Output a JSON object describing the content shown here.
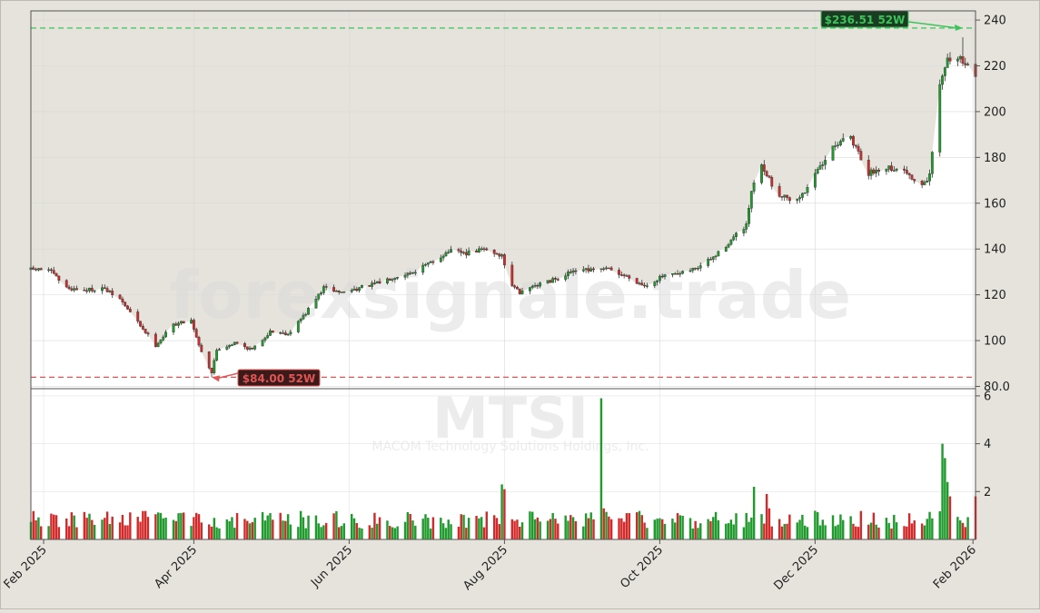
{
  "watermark": {
    "main": "forexsignale.trade",
    "ticker": "MTSI",
    "company": "MACOM Technology Solutions Holdings, Inc."
  },
  "colors": {
    "up": "#1f9a2c",
    "down": "#d22a2a",
    "high_line": "#3cc35a",
    "low_line": "#e05555",
    "panel_bg": "#ffffff",
    "outer_bg": "#e6e3dc",
    "shade": "#e6e3dc"
  },
  "chart_data": {
    "type": "candlestick",
    "ticker": "MTSI",
    "x_range": [
      "2025-01-27",
      "2026-02-02"
    ],
    "x_tick_labels": [
      "Feb 2025",
      "Apr 2025",
      "Jun 2025",
      "Aug 2025",
      "Oct 2025",
      "Dec 2025",
      "Feb 2026"
    ],
    "x_tick_dates": [
      "2025-02-01",
      "2025-04-01",
      "2025-06-01",
      "2025-08-01",
      "2025-10-01",
      "2025-12-01",
      "2026-02-01"
    ],
    "price_axis": {
      "range": [
        79,
        244
      ],
      "ticks": [
        80,
        100,
        120,
        140,
        160,
        180,
        200,
        220,
        240
      ],
      "tick_labels": [
        "80.0",
        "100",
        "120",
        "140",
        "160",
        "180",
        "200",
        "220",
        "240"
      ]
    },
    "volume_axis": {
      "range": [
        0,
        6.3
      ],
      "ticks": [
        2,
        4,
        6
      ],
      "tick_labels": [
        "2",
        "4",
        "6"
      ]
    },
    "high_52w": {
      "value": 236.51,
      "label": "$236.51 52W"
    },
    "low_52w": {
      "value": 84.0,
      "label": "$84.00 52W"
    },
    "last_close": 216,
    "close_anchors": [
      [
        "2025-01-27",
        131
      ],
      [
        "2025-02-03",
        131
      ],
      [
        "2025-02-10",
        123
      ],
      [
        "2025-02-17",
        122
      ],
      [
        "2025-02-24",
        123
      ],
      [
        "2025-03-03",
        118
      ],
      [
        "2025-03-10",
        108
      ],
      [
        "2025-03-17",
        98
      ],
      [
        "2025-03-24",
        107
      ],
      [
        "2025-03-31",
        109
      ],
      [
        "2025-04-03",
        98
      ],
      [
        "2025-04-08",
        86
      ],
      [
        "2025-04-10",
        96
      ],
      [
        "2025-04-17",
        99
      ],
      [
        "2025-04-24",
        96
      ],
      [
        "2025-05-01",
        104
      ],
      [
        "2025-05-08",
        103
      ],
      [
        "2025-05-15",
        112
      ],
      [
        "2025-05-22",
        123
      ],
      [
        "2025-05-29",
        121
      ],
      [
        "2025-06-05",
        123
      ],
      [
        "2025-06-12",
        125
      ],
      [
        "2025-06-19",
        128
      ],
      [
        "2025-06-26",
        130
      ],
      [
        "2025-07-03",
        134
      ],
      [
        "2025-07-10",
        139
      ],
      [
        "2025-07-17",
        138
      ],
      [
        "2025-07-24",
        140
      ],
      [
        "2025-07-31",
        137
      ],
      [
        "2025-08-04",
        124
      ],
      [
        "2025-08-07",
        121
      ],
      [
        "2025-08-14",
        124
      ],
      [
        "2025-08-21",
        127
      ],
      [
        "2025-08-28",
        130
      ],
      [
        "2025-09-04",
        131
      ],
      [
        "2025-09-11",
        131
      ],
      [
        "2025-09-18",
        128
      ],
      [
        "2025-09-25",
        124
      ],
      [
        "2025-10-02",
        128
      ],
      [
        "2025-10-09",
        129
      ],
      [
        "2025-10-16",
        132
      ],
      [
        "2025-10-23",
        137
      ],
      [
        "2025-10-30",
        145
      ],
      [
        "2025-11-04",
        150
      ],
      [
        "2025-11-06",
        165
      ],
      [
        "2025-11-10",
        176
      ],
      [
        "2025-11-17",
        163
      ],
      [
        "2025-11-24",
        161
      ],
      [
        "2025-12-01",
        172
      ],
      [
        "2025-12-08",
        186
      ],
      [
        "2025-12-15",
        188
      ],
      [
        "2025-12-22",
        173
      ],
      [
        "2025-12-29",
        176
      ],
      [
        "2026-01-05",
        174
      ],
      [
        "2026-01-12",
        167
      ],
      [
        "2026-01-15",
        172
      ],
      [
        "2026-01-19",
        212
      ],
      [
        "2026-01-22",
        222
      ],
      [
        "2026-01-26",
        224
      ],
      [
        "2026-02-02",
        216
      ]
    ],
    "volume_spikes": [
      [
        "2025-07-31",
        2.3
      ],
      [
        "2025-08-01",
        2.1
      ],
      [
        "2025-09-08",
        5.9
      ],
      [
        "2025-09-09",
        1.3
      ],
      [
        "2025-11-07",
        2.2
      ],
      [
        "2025-11-08",
        1.6
      ],
      [
        "2025-11-12",
        1.9
      ],
      [
        "2025-11-13",
        1.3
      ],
      [
        "2026-01-20",
        4.0
      ],
      [
        "2026-01-21",
        3.4
      ],
      [
        "2026-01-22",
        2.4
      ],
      [
        "2026-01-23",
        1.8
      ],
      [
        "2026-02-02",
        1.8
      ]
    ]
  }
}
